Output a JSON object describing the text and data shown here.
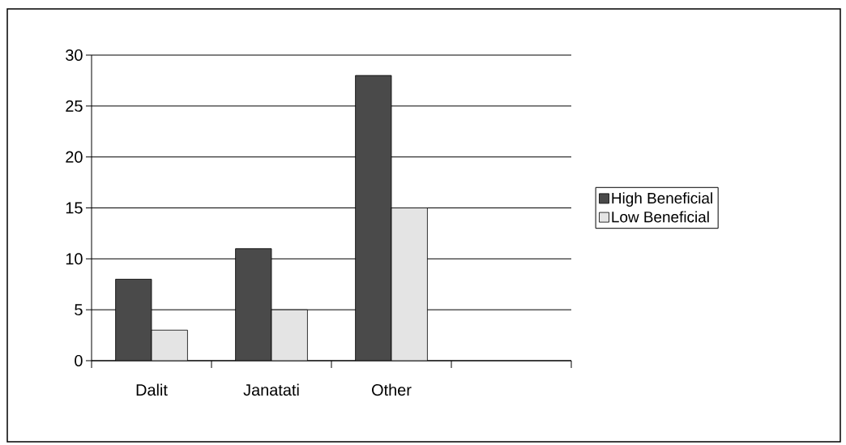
{
  "chart_data": {
    "type": "bar",
    "categories": [
      "Dalit",
      "Janatati",
      "Other",
      null
    ],
    "series": [
      {
        "name": "High Beneficial",
        "color": "#4a4a4a",
        "values": [
          8,
          11,
          28,
          null
        ]
      },
      {
        "name": "Low Beneficial",
        "color": "#e4e4e4",
        "values": [
          3,
          5,
          15,
          null
        ]
      }
    ],
    "ylim": [
      0,
      30
    ],
    "yticks": [
      0,
      5,
      10,
      15,
      20,
      25,
      30
    ],
    "grid": "y",
    "legend": "right"
  }
}
